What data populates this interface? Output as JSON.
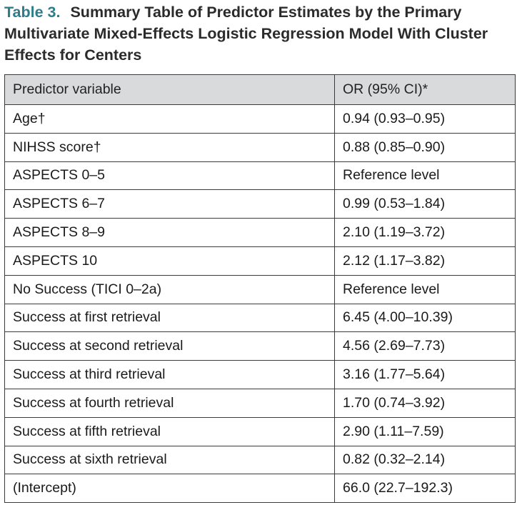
{
  "caption": {
    "label": "Table 3.",
    "title": "Summary Table of Predictor Estimates by the Primary Multivariate Mixed-Effects Logistic Regression Model With Cluster Effects for Centers"
  },
  "table": {
    "headers": [
      "Predictor variable",
      "OR (95% CI)*"
    ],
    "rows": [
      [
        "Age†",
        "0.94 (0.93–0.95)"
      ],
      [
        "NIHSS score†",
        "0.88 (0.85–0.90)"
      ],
      [
        "ASPECTS 0–5",
        "Reference level"
      ],
      [
        "ASPECTS 6–7",
        "0.99 (0.53–1.84)"
      ],
      [
        "ASPECTS 8–9",
        "2.10 (1.19–3.72)"
      ],
      [
        "ASPECTS 10",
        "2.12 (1.17–3.82)"
      ],
      [
        "No Success (TICI 0–2a)",
        "Reference level"
      ],
      [
        "Success at first retrieval",
        "6.45 (4.00–10.39)"
      ],
      [
        "Success at second retrieval",
        "4.56 (2.69–7.73)"
      ],
      [
        "Success at third retrieval",
        "3.16 (1.77–5.64)"
      ],
      [
        "Success at fourth retrieval",
        "1.70 (0.74–3.92)"
      ],
      [
        "Success at fifth retrieval",
        "2.90 (1.11–7.59)"
      ],
      [
        "Success at sixth retrieval",
        "0.82 (0.32–2.14)"
      ],
      [
        "(Intercept)",
        "66.0 (22.7–192.3)"
      ]
    ]
  },
  "colors": {
    "label": "#2e7d8c",
    "header_background": "#d9dadb",
    "border": "#3a3a3a"
  }
}
